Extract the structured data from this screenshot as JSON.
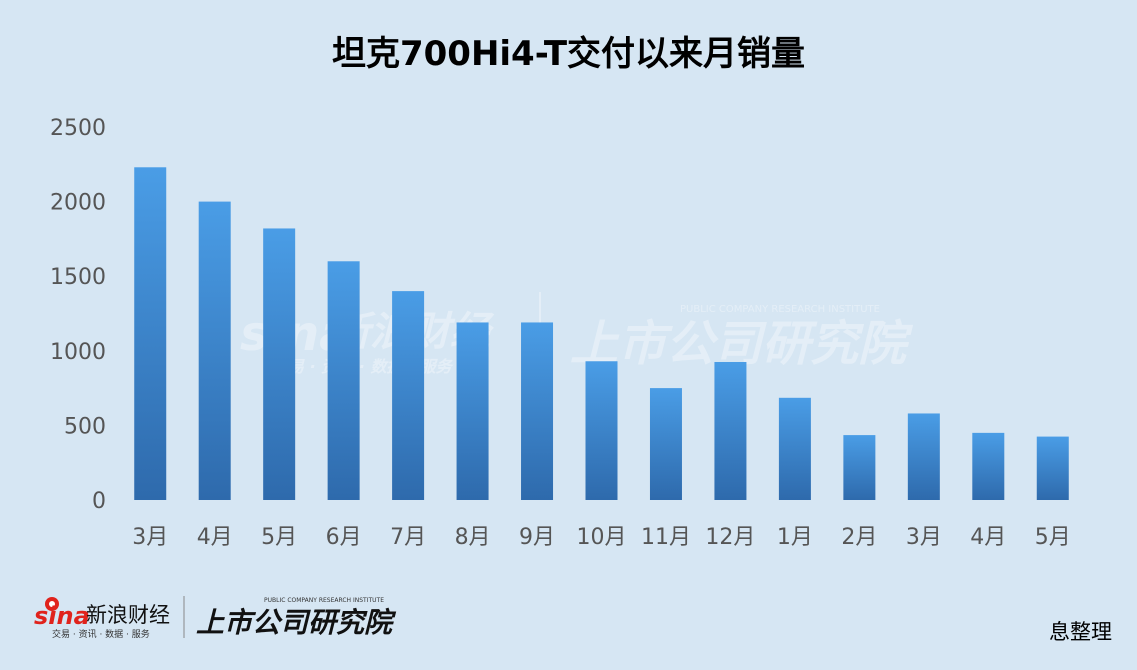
{
  "chart_data": {
    "type": "bar",
    "title": "坦克700Hi4-T交付以来月销量",
    "categories": [
      "3月",
      "4月",
      "5月",
      "6月",
      "7月",
      "8月",
      "9月",
      "10月",
      "11月",
      "12月",
      "1月",
      "2月",
      "3月",
      "4月",
      "5月"
    ],
    "values": [
      2230,
      2000,
      1820,
      1600,
      1400,
      1190,
      1190,
      930,
      750,
      925,
      685,
      435,
      580,
      450,
      425
    ],
    "ylim": [
      0,
      2500
    ],
    "yticks": [
      0,
      500,
      1000,
      1500,
      2000,
      2500
    ],
    "grid": false,
    "bar_color_top": "#4a9de6",
    "bar_color_bottom": "#2e6aac"
  },
  "watermark": {
    "sina": "sina",
    "sina_cn": "新浪财经",
    "sina_sub": "交易 · 资讯 · 数据 · 服务",
    "institute_cn": "上市公司研究院",
    "institute_en": "PUBLIC COMPANY RESEARCH INSTITUTE"
  },
  "source_text": "息整理"
}
